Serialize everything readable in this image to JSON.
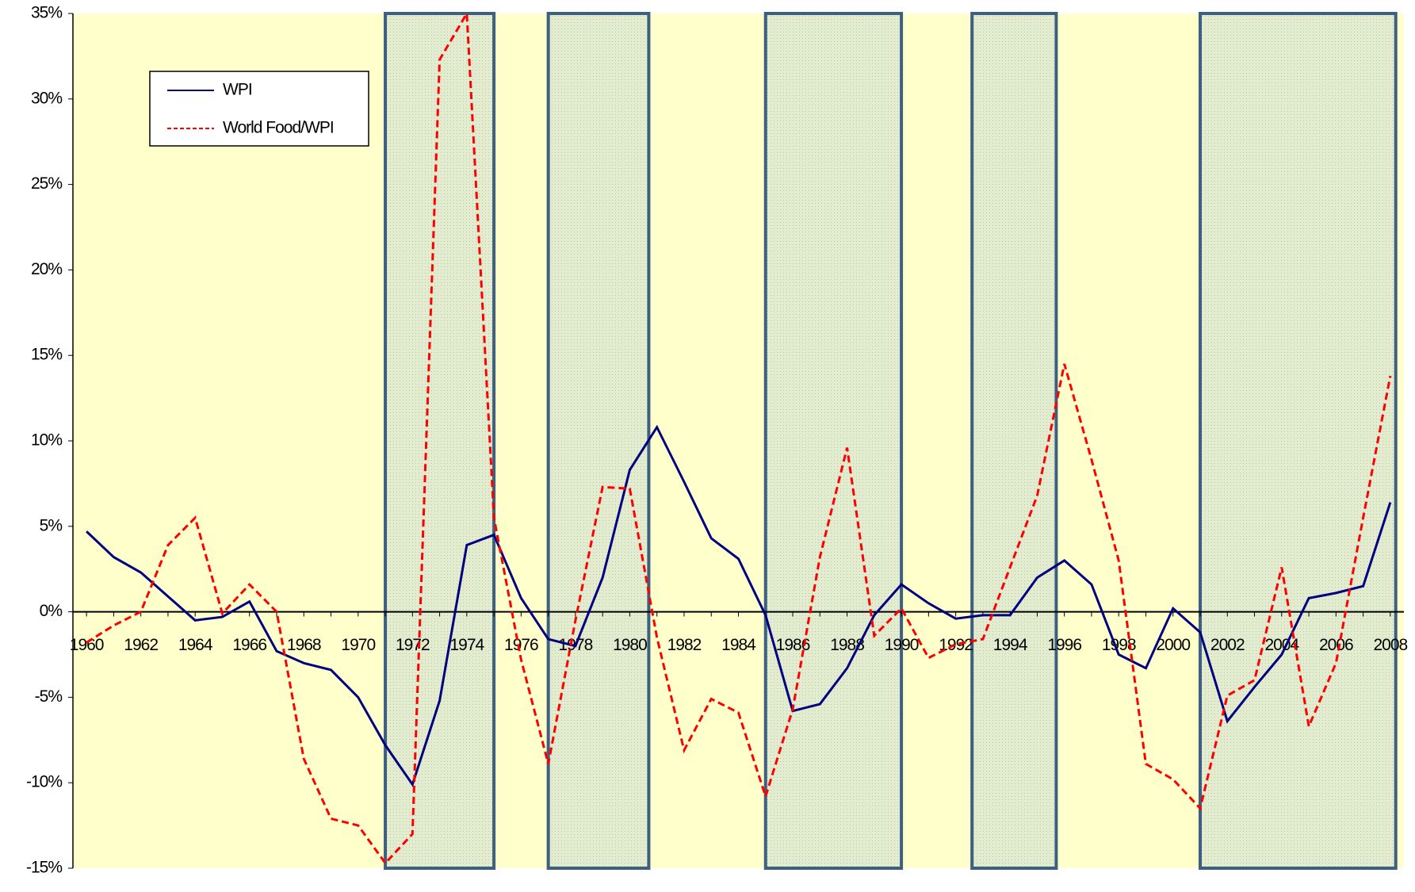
{
  "chart_data": {
    "type": "line",
    "categories": [
      "1960",
      null,
      "1962",
      null,
      "1964",
      null,
      "1966",
      null,
      "1968",
      null,
      "1970",
      null,
      "1972",
      null,
      "1974",
      null,
      "1976",
      null,
      "1978",
      null,
      "1980",
      null,
      "1982",
      null,
      "1984",
      null,
      "1986",
      null,
      "1988",
      null,
      "1990",
      null,
      "1992",
      null,
      "1994",
      null,
      "1996",
      null,
      "1998",
      null,
      "2000",
      null,
      "2002",
      null,
      "2004",
      null,
      "2006",
      null,
      "2008"
    ],
    "series": [
      {
        "name": "WPI",
        "color": "#000080",
        "dash": "solid",
        "values": [
          4.7,
          3.2,
          2.3,
          0.9,
          -0.5,
          -0.3,
          0.6,
          -2.3,
          -3.0,
          -3.4,
          -5.0,
          -7.8,
          -10.1,
          -5.2,
          3.9,
          4.5,
          0.8,
          -1.6,
          -2.0,
          2.0,
          8.3,
          10.8,
          7.6,
          4.3,
          3.1,
          -0.2,
          -5.8,
          -5.4,
          -3.3,
          -0.2,
          1.6,
          0.5,
          -0.4,
          -0.2,
          -0.2,
          2.0,
          3.0,
          1.6,
          -2.5,
          -3.3,
          0.2,
          -1.2,
          -6.4,
          -4.4,
          -2.5,
          0.8,
          1.1,
          1.5,
          6.4
        ]
      },
      {
        "name": "World Food/WPI",
        "color": "#ff0000",
        "dash": "dashed",
        "values": [
          -1.8,
          -0.8,
          0.0,
          3.9,
          5.5,
          -0.1,
          1.6,
          0.0,
          -8.6,
          -12.1,
          -12.5,
          -14.7,
          -13.0,
          32.3,
          35.0,
          5.5,
          -2.8,
          -8.9,
          -0.5,
          7.3,
          7.2,
          -1.5,
          -8.1,
          -5.1,
          -5.9,
          -10.8,
          -5.7,
          3.2,
          9.6,
          -1.4,
          0.2,
          -2.7,
          -1.9,
          -1.6,
          2.6,
          6.8,
          14.5,
          8.9,
          3.0,
          -8.9,
          -9.8,
          -11.5,
          -4.9,
          -4.0,
          2.6,
          -6.7,
          -3.0,
          5.5,
          13.8
        ]
      }
    ],
    "shaded_periods": [
      [
        1971,
        1975
      ],
      [
        1977,
        1980.7
      ],
      [
        1985,
        1990
      ],
      [
        1992.6,
        1995.7
      ],
      [
        2001,
        2008.2
      ]
    ],
    "ylim": [
      -15,
      35
    ],
    "yticks": [
      {
        "value": -15,
        "label": "-15%"
      },
      {
        "value": -10,
        "label": "-10%"
      },
      {
        "value": -5,
        "label": "-5%"
      },
      {
        "value": 0,
        "label": "0%"
      },
      {
        "value": 5,
        "label": "5%"
      },
      {
        "value": 10,
        "label": "10%"
      },
      {
        "value": 15,
        "label": "15%"
      },
      {
        "value": 20,
        "label": "20%"
      },
      {
        "value": 25,
        "label": "25%"
      },
      {
        "value": 30,
        "label": "30%"
      },
      {
        "value": 35,
        "label": "35%"
      }
    ],
    "legend": "upper left"
  }
}
